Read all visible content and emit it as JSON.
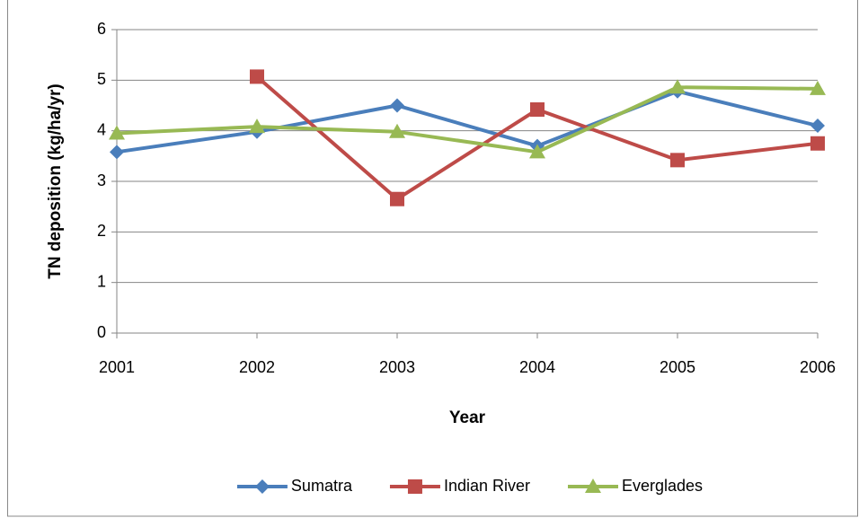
{
  "chart_data": {
    "type": "line",
    "x": [
      2001,
      2002,
      2003,
      2004,
      2005,
      2006
    ],
    "xlim": [
      2001,
      2006
    ],
    "xticks": [
      2001,
      2002,
      2003,
      2004,
      2005,
      2006
    ],
    "ylim": [
      0,
      6
    ],
    "yticks": [
      0,
      1,
      2,
      3,
      4,
      5,
      6
    ],
    "xlabel": "Year",
    "ylabel": "TN deposition (kg/ha/yr)",
    "grid": true,
    "legend": "bottom",
    "series": [
      {
        "name": "Sumatra",
        "color": "#4a7ebb",
        "marker": "diamond",
        "values": [
          3.58,
          3.98,
          4.5,
          3.7,
          4.78,
          4.1
        ]
      },
      {
        "name": "Indian River",
        "color": "#be4b48",
        "marker": "square",
        "values": [
          null,
          5.07,
          2.65,
          4.42,
          3.42,
          3.75
        ]
      },
      {
        "name": "Everglades",
        "color": "#98b954",
        "marker": "triangle",
        "values": [
          3.95,
          4.08,
          3.98,
          3.58,
          4.86,
          4.83
        ]
      }
    ]
  }
}
